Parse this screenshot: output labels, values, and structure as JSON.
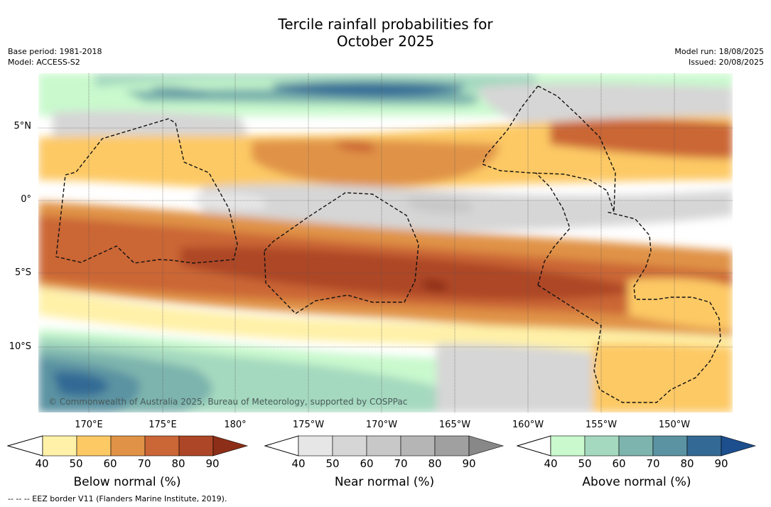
{
  "title": "Tercile rainfall probabilities for",
  "subtitle": "October 2025",
  "meta_left": [
    "Base period: 1981-2018",
    "Model: ACCESS-S2"
  ],
  "meta_right": [
    "Model run: 18/08/2025",
    "Issued: 20/08/2025"
  ],
  "copyright": "© Commonwealth of Australia 2025, Bureau of Meteorology, supported by COSPPac",
  "lat_labels": [
    "5°N",
    "0°",
    "5°S",
    "10°S"
  ],
  "lon_labels": [
    "170°E",
    "175°E",
    "180°",
    "175°W",
    "170°W",
    "165°W",
    "160°W",
    "155°W",
    "150°W"
  ],
  "legend": {
    "below": {
      "title": "Below normal (%)",
      "ticks": [
        "40",
        "50",
        "60",
        "70",
        "80",
        "90"
      ],
      "colors": [
        "#fff1a8",
        "#fdc965",
        "#e09346",
        "#cb6636",
        "#ad4626",
        "#8d2f18"
      ]
    },
    "near": {
      "title": "Near normal (%)",
      "ticks": [
        "40",
        "50",
        "60",
        "70",
        "80",
        "90"
      ],
      "colors": [
        "#e6e6e6",
        "#d6d6d6",
        "#c8c8c8",
        "#b5b5b5",
        "#a0a0a0",
        "#888888"
      ]
    },
    "above": {
      "title": "Above normal (%)",
      "ticks": [
        "40",
        "50",
        "60",
        "70",
        "80",
        "90"
      ],
      "colors": [
        "#c9f9cd",
        "#a5d9bf",
        "#7db4ad",
        "#5b93a2",
        "#336a95",
        "#1d4f8e"
      ]
    }
  },
  "footnote": "--  --  -- EEZ border V11 (Flanders Marine Institute, 2019)."
}
